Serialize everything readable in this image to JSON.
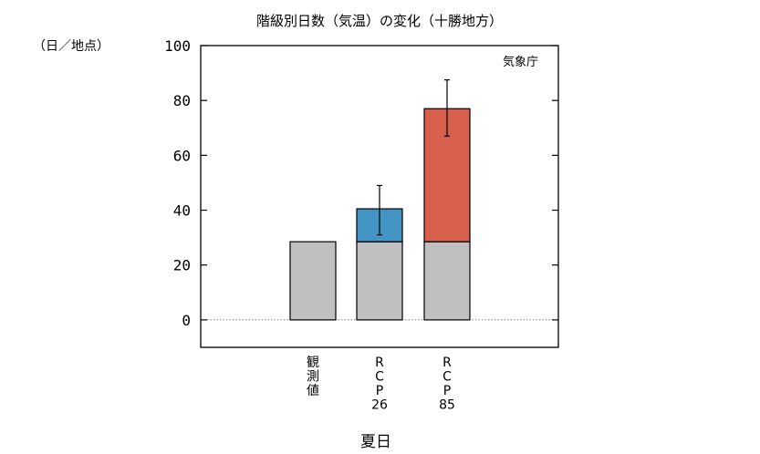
{
  "chart_data": {
    "type": "bar",
    "title": "階級別日数（気温）の変化（十勝地方）",
    "ylabel": "（日／地点）",
    "xlabel": "夏日",
    "source": "気象庁",
    "ylim": [
      -10,
      100
    ],
    "yticks": [
      0,
      20,
      40,
      60,
      80,
      100
    ],
    "grid": false,
    "categories": [
      {
        "label_lines": [
          "観",
          "測",
          "値"
        ]
      },
      {
        "label_lines": [
          "R",
          "C",
          "P",
          "26"
        ]
      },
      {
        "label_lines": [
          "R",
          "C",
          "P",
          "85"
        ]
      }
    ],
    "series": [
      {
        "color": "#c0c0c0",
        "values": [
          28.5,
          28.5,
          28.5
        ]
      },
      {
        "color_per_bar": [
          null,
          "#4393c3",
          "#d6604d"
        ],
        "values": [
          0,
          12,
          48.5
        ]
      }
    ],
    "totals": [
      28.5,
      40.5,
      77
    ]
  },
  "error_bars": [
    null,
    {
      "low": 31,
      "high": 49
    },
    {
      "low": 67,
      "high": 87.5
    }
  ]
}
